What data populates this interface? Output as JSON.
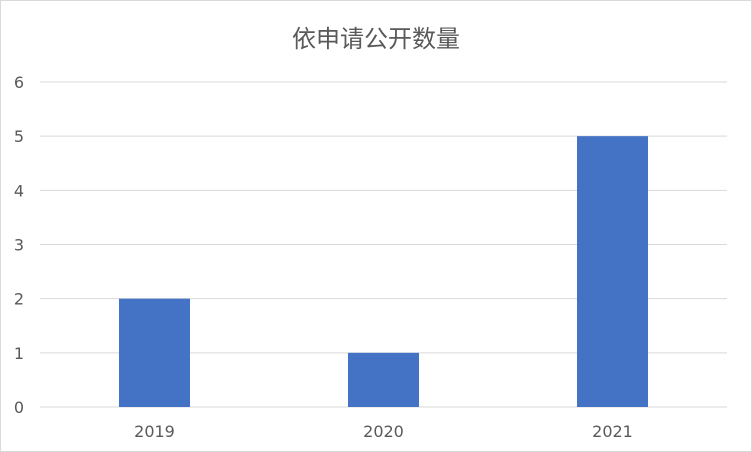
{
  "chart_data": {
    "type": "bar",
    "title": "依申请公开数量",
    "categories": [
      "2019",
      "2020",
      "2021"
    ],
    "values": [
      2,
      1,
      5
    ],
    "ylim": [
      0,
      6
    ],
    "yticks": [
      "0",
      "1",
      "2",
      "3",
      "4",
      "5",
      "6"
    ],
    "xlabel": "",
    "ylabel": "",
    "grid": true,
    "legend": "none",
    "bar_color": "#4472C4"
  }
}
